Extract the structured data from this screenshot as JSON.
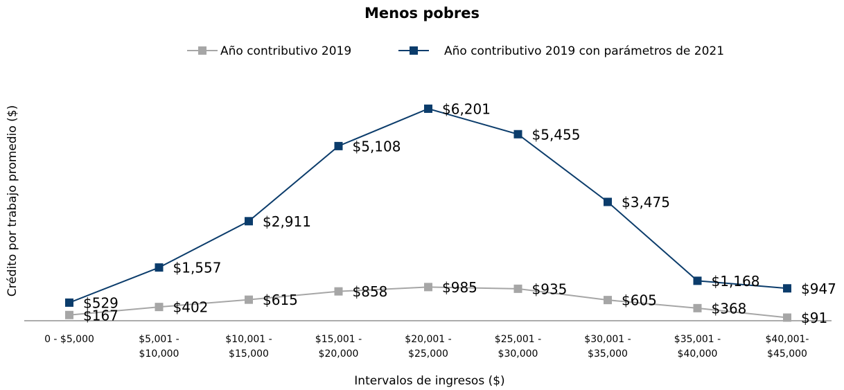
{
  "chart_data": {
    "type": "line",
    "title": "Menos pobres",
    "x_label": "Intervalos de ingresos ($)",
    "y_label": "Crédito por trabajo promedio ($)",
    "categories": [
      "0 - $5,000",
      "$5,001 -\n$10,000",
      "$10,001 -\n$15,000",
      "$15,001 -\n$20,000",
      "$20,001 -\n$25,000",
      "$25,001 -\n$30,000",
      "$30,001 -\n$35,000",
      "$35,001 -\n$40,000",
      "$40,001-\n$45,000"
    ],
    "series": [
      {
        "name": "Año contributivo 2019",
        "color": "#a6a6a6",
        "values": [
          167,
          402,
          615,
          858,
          985,
          935,
          605,
          368,
          91
        ],
        "value_labels": [
          "$167",
          "$402",
          "$615",
          "$858",
          "$985",
          "$935",
          "$605",
          "$368",
          "$91"
        ]
      },
      {
        "name": "Año contributivo 2019 con parámetros de 2021",
        "color": "#0b3c6b",
        "values": [
          529,
          1557,
          2911,
          5108,
          6201,
          5455,
          3475,
          1168,
          947
        ],
        "value_labels": [
          "$529",
          "$1,557",
          "$2,911",
          "$5,108",
          "$6,201",
          "$5,455",
          "$3,475",
          "$1,168",
          "$947"
        ]
      }
    ],
    "ylim": [
      0,
      7000
    ]
  }
}
